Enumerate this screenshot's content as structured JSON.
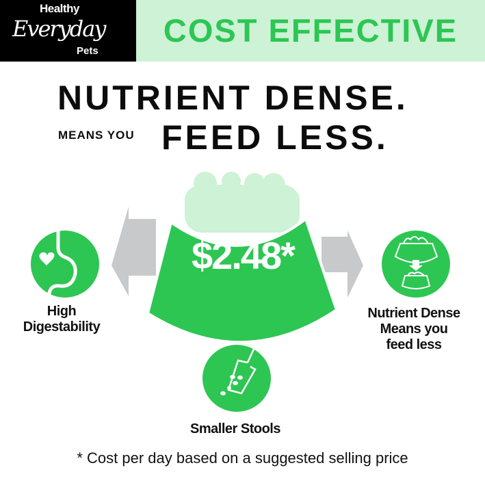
{
  "brand": {
    "line1": "Healthy",
    "line2": "Everyday",
    "line3": "Pets"
  },
  "header": {
    "title": "COST EFFECTIVE"
  },
  "headline": {
    "line1": "NUTRIENT DENSE.",
    "prefix": "MEANS YOU",
    "line2": "FEED LESS."
  },
  "bowl": {
    "price": "$2.48*"
  },
  "benefits": [
    {
      "icon": "stomach-heart-icon",
      "lines": [
        "High",
        "Digestability"
      ]
    },
    {
      "icon": "bowl-shrink-icon",
      "lines": [
        "Nutrient Dense",
        "Means you",
        "feed less"
      ]
    },
    {
      "icon": "stool-scoop-icon",
      "lines": [
        "Smaller Stools"
      ]
    }
  ],
  "footnote": "* Cost per day based on a suggested selling price",
  "colors": {
    "green": "#2dc653",
    "light_green": "#cdf2d6",
    "gray_arrow": "#c8c9cb",
    "black": "#000000"
  }
}
